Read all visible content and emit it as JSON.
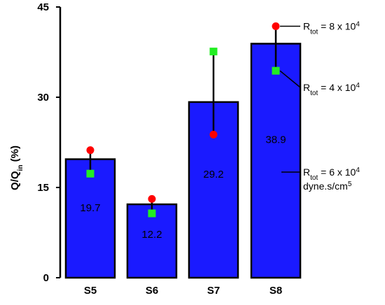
{
  "chart_data": {
    "type": "bar",
    "title": "",
    "xlabel": "",
    "ylabel": {
      "main": "Q/Q",
      "sub": "in",
      "suffix": " (%)"
    },
    "ylim": [
      0,
      45
    ],
    "yticks": [
      "0",
      "15",
      "30",
      "45"
    ],
    "categories": [
      "S5",
      "S6",
      "S7",
      "S8"
    ],
    "values": [
      19.7,
      12.2,
      29.2,
      38.9
    ],
    "value_labels": [
      "19.7",
      "12.2",
      "29.2",
      "38.9"
    ],
    "bar_color": "#1a1aff",
    "markers": [
      {
        "name": "red-circle",
        "color": "#ff0000",
        "values": [
          21.2,
          13.1,
          23.8,
          41.8
        ]
      },
      {
        "name": "green-square",
        "color": "#22ee22",
        "values": [
          17.3,
          10.7,
          37.6,
          34.4
        ]
      }
    ],
    "annotations": [
      {
        "marker": "red-circle",
        "category": "S8",
        "pre": "R",
        "sub": "tot",
        "text": " = 8 x 10",
        "sup": "4",
        "line2": ""
      },
      {
        "marker": "green-square",
        "category": "S8",
        "pre": "R",
        "sub": "tot",
        "text": " = 4 x 10",
        "sup": "4",
        "line2": ""
      },
      {
        "marker": "bar",
        "category": "S8",
        "pre": "R",
        "sub": "tot",
        "text": " = 6 x 10",
        "sup": "4",
        "line2": "dyne.s/cm",
        "line2_sup": "5"
      }
    ]
  }
}
